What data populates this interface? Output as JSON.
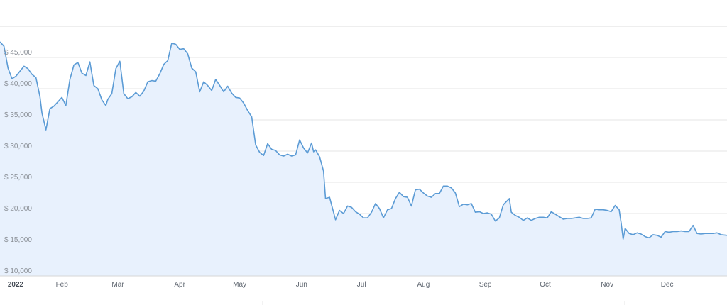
{
  "chart_data": {
    "type": "area",
    "title": "",
    "xlabel": "",
    "ylabel": "",
    "ylim": [
      10000,
      50000
    ],
    "y_ticks": [
      {
        "value": 10000,
        "label": "$ 10,000"
      },
      {
        "value": 15000,
        "label": "$ 15,000"
      },
      {
        "value": 20000,
        "label": "$ 20,000"
      },
      {
        "value": 25000,
        "label": "$ 25,000"
      },
      {
        "value": 30000,
        "label": "$ 30,000"
      },
      {
        "value": 35000,
        "label": "$ 35,000"
      },
      {
        "value": 40000,
        "label": "$ 40,000"
      },
      {
        "value": 45000,
        "label": "$ 45,000"
      }
    ],
    "x_range": [
      "2022-01-01",
      "2022-12-31"
    ],
    "x_ticks": [
      {
        "date": "2022-01-01",
        "label": "2022",
        "bold": true
      },
      {
        "date": "2022-02-01",
        "label": "Feb"
      },
      {
        "date": "2022-03-01",
        "label": "Mar"
      },
      {
        "date": "2022-04-01",
        "label": "Apr"
      },
      {
        "date": "2022-05-01",
        "label": "May"
      },
      {
        "date": "2022-06-01",
        "label": "Jun"
      },
      {
        "date": "2022-07-01",
        "label": "Jul"
      },
      {
        "date": "2022-08-01",
        "label": "Aug"
      },
      {
        "date": "2022-09-01",
        "label": "Sep"
      },
      {
        "date": "2022-10-01",
        "label": "Oct"
      },
      {
        "date": "2022-11-01",
        "label": "Nov"
      },
      {
        "date": "2022-12-01",
        "label": "Dec"
      }
    ],
    "grid": true,
    "legend": "none",
    "colors": {
      "line": "#5b9bd5",
      "fill": "#e8f1fd",
      "grid": "#e6e6e6"
    },
    "series": [
      {
        "points": [
          [
            "2022-01-01",
            47500
          ],
          [
            "2022-01-03",
            46800
          ],
          [
            "2022-01-05",
            43300
          ],
          [
            "2022-01-07",
            41600
          ],
          [
            "2022-01-09",
            42000
          ],
          [
            "2022-01-11",
            42800
          ],
          [
            "2022-01-13",
            43600
          ],
          [
            "2022-01-15",
            43200
          ],
          [
            "2022-01-17",
            42300
          ],
          [
            "2022-01-19",
            41800
          ],
          [
            "2022-01-21",
            38700
          ],
          [
            "2022-01-22",
            36100
          ],
          [
            "2022-01-24",
            33400
          ],
          [
            "2022-01-26",
            36800
          ],
          [
            "2022-01-28",
            37200
          ],
          [
            "2022-01-30",
            37900
          ],
          [
            "2022-02-01",
            38600
          ],
          [
            "2022-02-03",
            37300
          ],
          [
            "2022-02-05",
            41500
          ],
          [
            "2022-02-07",
            43800
          ],
          [
            "2022-02-09",
            44200
          ],
          [
            "2022-02-11",
            42500
          ],
          [
            "2022-02-13",
            42100
          ],
          [
            "2022-02-15",
            44300
          ],
          [
            "2022-02-17",
            40500
          ],
          [
            "2022-02-19",
            40000
          ],
          [
            "2022-02-21",
            38200
          ],
          [
            "2022-02-23",
            37300
          ],
          [
            "2022-02-24",
            38300
          ],
          [
            "2022-02-26",
            39200
          ],
          [
            "2022-02-28",
            43200
          ],
          [
            "2022-03-02",
            44400
          ],
          [
            "2022-03-04",
            39200
          ],
          [
            "2022-03-06",
            38400
          ],
          [
            "2022-03-08",
            38700
          ],
          [
            "2022-03-10",
            39400
          ],
          [
            "2022-03-12",
            38800
          ],
          [
            "2022-03-14",
            39600
          ],
          [
            "2022-03-16",
            41100
          ],
          [
            "2022-03-18",
            41300
          ],
          [
            "2022-03-20",
            41200
          ],
          [
            "2022-03-22",
            42400
          ],
          [
            "2022-03-24",
            43900
          ],
          [
            "2022-03-26",
            44500
          ],
          [
            "2022-03-28",
            47300
          ],
          [
            "2022-03-30",
            47100
          ],
          [
            "2022-04-01",
            46300
          ],
          [
            "2022-04-03",
            46400
          ],
          [
            "2022-04-05",
            45600
          ],
          [
            "2022-04-07",
            43300
          ],
          [
            "2022-04-09",
            42700
          ],
          [
            "2022-04-11",
            39500
          ],
          [
            "2022-04-13",
            41100
          ],
          [
            "2022-04-15",
            40500
          ],
          [
            "2022-04-17",
            39700
          ],
          [
            "2022-04-19",
            41500
          ],
          [
            "2022-04-21",
            40500
          ],
          [
            "2022-04-23",
            39500
          ],
          [
            "2022-04-25",
            40400
          ],
          [
            "2022-04-27",
            39300
          ],
          [
            "2022-04-29",
            38600
          ],
          [
            "2022-05-01",
            38500
          ],
          [
            "2022-05-03",
            37700
          ],
          [
            "2022-05-05",
            36500
          ],
          [
            "2022-05-07",
            35500
          ],
          [
            "2022-05-09",
            31000
          ],
          [
            "2022-05-11",
            29800
          ],
          [
            "2022-05-13",
            29300
          ],
          [
            "2022-05-15",
            31200
          ],
          [
            "2022-05-17",
            30300
          ],
          [
            "2022-05-19",
            30100
          ],
          [
            "2022-05-21",
            29400
          ],
          [
            "2022-05-23",
            29200
          ],
          [
            "2022-05-25",
            29500
          ],
          [
            "2022-05-27",
            29200
          ],
          [
            "2022-05-29",
            29400
          ],
          [
            "2022-05-31",
            31800
          ],
          [
            "2022-06-02",
            30500
          ],
          [
            "2022-06-04",
            29700
          ],
          [
            "2022-06-06",
            31300
          ],
          [
            "2022-06-07",
            29900
          ],
          [
            "2022-06-08",
            30200
          ],
          [
            "2022-06-10",
            29100
          ],
          [
            "2022-06-12",
            26800
          ],
          [
            "2022-06-13",
            22400
          ],
          [
            "2022-06-15",
            22600
          ],
          [
            "2022-06-18",
            19000
          ],
          [
            "2022-06-20",
            20500
          ],
          [
            "2022-06-22",
            20000
          ],
          [
            "2022-06-24",
            21200
          ],
          [
            "2022-06-26",
            21000
          ],
          [
            "2022-06-28",
            20300
          ],
          [
            "2022-06-30",
            19900
          ],
          [
            "2022-07-02",
            19300
          ],
          [
            "2022-07-04",
            19300
          ],
          [
            "2022-07-06",
            20200
          ],
          [
            "2022-07-08",
            21600
          ],
          [
            "2022-07-10",
            20800
          ],
          [
            "2022-07-12",
            19300
          ],
          [
            "2022-07-14",
            20600
          ],
          [
            "2022-07-16",
            20800
          ],
          [
            "2022-07-18",
            22400
          ],
          [
            "2022-07-20",
            23400
          ],
          [
            "2022-07-22",
            22700
          ],
          [
            "2022-07-24",
            22600
          ],
          [
            "2022-07-26",
            21200
          ],
          [
            "2022-07-28",
            23800
          ],
          [
            "2022-07-30",
            23900
          ],
          [
            "2022-08-01",
            23300
          ],
          [
            "2022-08-03",
            22800
          ],
          [
            "2022-08-05",
            22600
          ],
          [
            "2022-08-07",
            23200
          ],
          [
            "2022-08-09",
            23200
          ],
          [
            "2022-08-11",
            24400
          ],
          [
            "2022-08-13",
            24400
          ],
          [
            "2022-08-15",
            24100
          ],
          [
            "2022-08-17",
            23300
          ],
          [
            "2022-08-19",
            21100
          ],
          [
            "2022-08-21",
            21500
          ],
          [
            "2022-08-23",
            21400
          ],
          [
            "2022-08-25",
            21600
          ],
          [
            "2022-08-27",
            20200
          ],
          [
            "2022-08-29",
            20300
          ],
          [
            "2022-08-31",
            20000
          ],
          [
            "2022-09-02",
            20100
          ],
          [
            "2022-09-04",
            19900
          ],
          [
            "2022-09-06",
            18800
          ],
          [
            "2022-09-08",
            19300
          ],
          [
            "2022-09-10",
            21400
          ],
          [
            "2022-09-13",
            22400
          ],
          [
            "2022-09-14",
            20200
          ],
          [
            "2022-09-16",
            19700
          ],
          [
            "2022-09-18",
            19400
          ],
          [
            "2022-09-20",
            18900
          ],
          [
            "2022-09-22",
            19300
          ],
          [
            "2022-09-24",
            18900
          ],
          [
            "2022-09-26",
            19200
          ],
          [
            "2022-09-28",
            19400
          ],
          [
            "2022-09-30",
            19400
          ],
          [
            "2022-10-02",
            19300
          ],
          [
            "2022-10-04",
            20300
          ],
          [
            "2022-10-06",
            19900
          ],
          [
            "2022-10-08",
            19500
          ],
          [
            "2022-10-10",
            19100
          ],
          [
            "2022-10-12",
            19200
          ],
          [
            "2022-10-14",
            19200
          ],
          [
            "2022-10-16",
            19300
          ],
          [
            "2022-10-18",
            19400
          ],
          [
            "2022-10-20",
            19200
          ],
          [
            "2022-10-22",
            19200
          ],
          [
            "2022-10-24",
            19300
          ],
          [
            "2022-10-26",
            20700
          ],
          [
            "2022-10-28",
            20600
          ],
          [
            "2022-10-30",
            20600
          ],
          [
            "2022-11-01",
            20500
          ],
          [
            "2022-11-03",
            20300
          ],
          [
            "2022-11-05",
            21300
          ],
          [
            "2022-11-07",
            20600
          ],
          [
            "2022-11-08",
            18500
          ],
          [
            "2022-11-09",
            15900
          ],
          [
            "2022-11-10",
            17600
          ],
          [
            "2022-11-12",
            16800
          ],
          [
            "2022-11-14",
            16600
          ],
          [
            "2022-11-16",
            16900
          ],
          [
            "2022-11-18",
            16700
          ],
          [
            "2022-11-20",
            16300
          ],
          [
            "2022-11-22",
            16100
          ],
          [
            "2022-11-24",
            16600
          ],
          [
            "2022-11-26",
            16500
          ],
          [
            "2022-11-28",
            16200
          ],
          [
            "2022-11-30",
            17100
          ],
          [
            "2022-12-02",
            17000
          ],
          [
            "2022-12-04",
            17100
          ],
          [
            "2022-12-06",
            17100
          ],
          [
            "2022-12-08",
            17200
          ],
          [
            "2022-12-10",
            17100
          ],
          [
            "2022-12-12",
            17100
          ],
          [
            "2022-12-14",
            18100
          ],
          [
            "2022-12-16",
            16800
          ],
          [
            "2022-12-18",
            16700
          ],
          [
            "2022-12-20",
            16800
          ],
          [
            "2022-12-22",
            16800
          ],
          [
            "2022-12-24",
            16800
          ],
          [
            "2022-12-26",
            16900
          ],
          [
            "2022-12-28",
            16600
          ],
          [
            "2022-12-31",
            16500
          ]
        ]
      }
    ]
  }
}
